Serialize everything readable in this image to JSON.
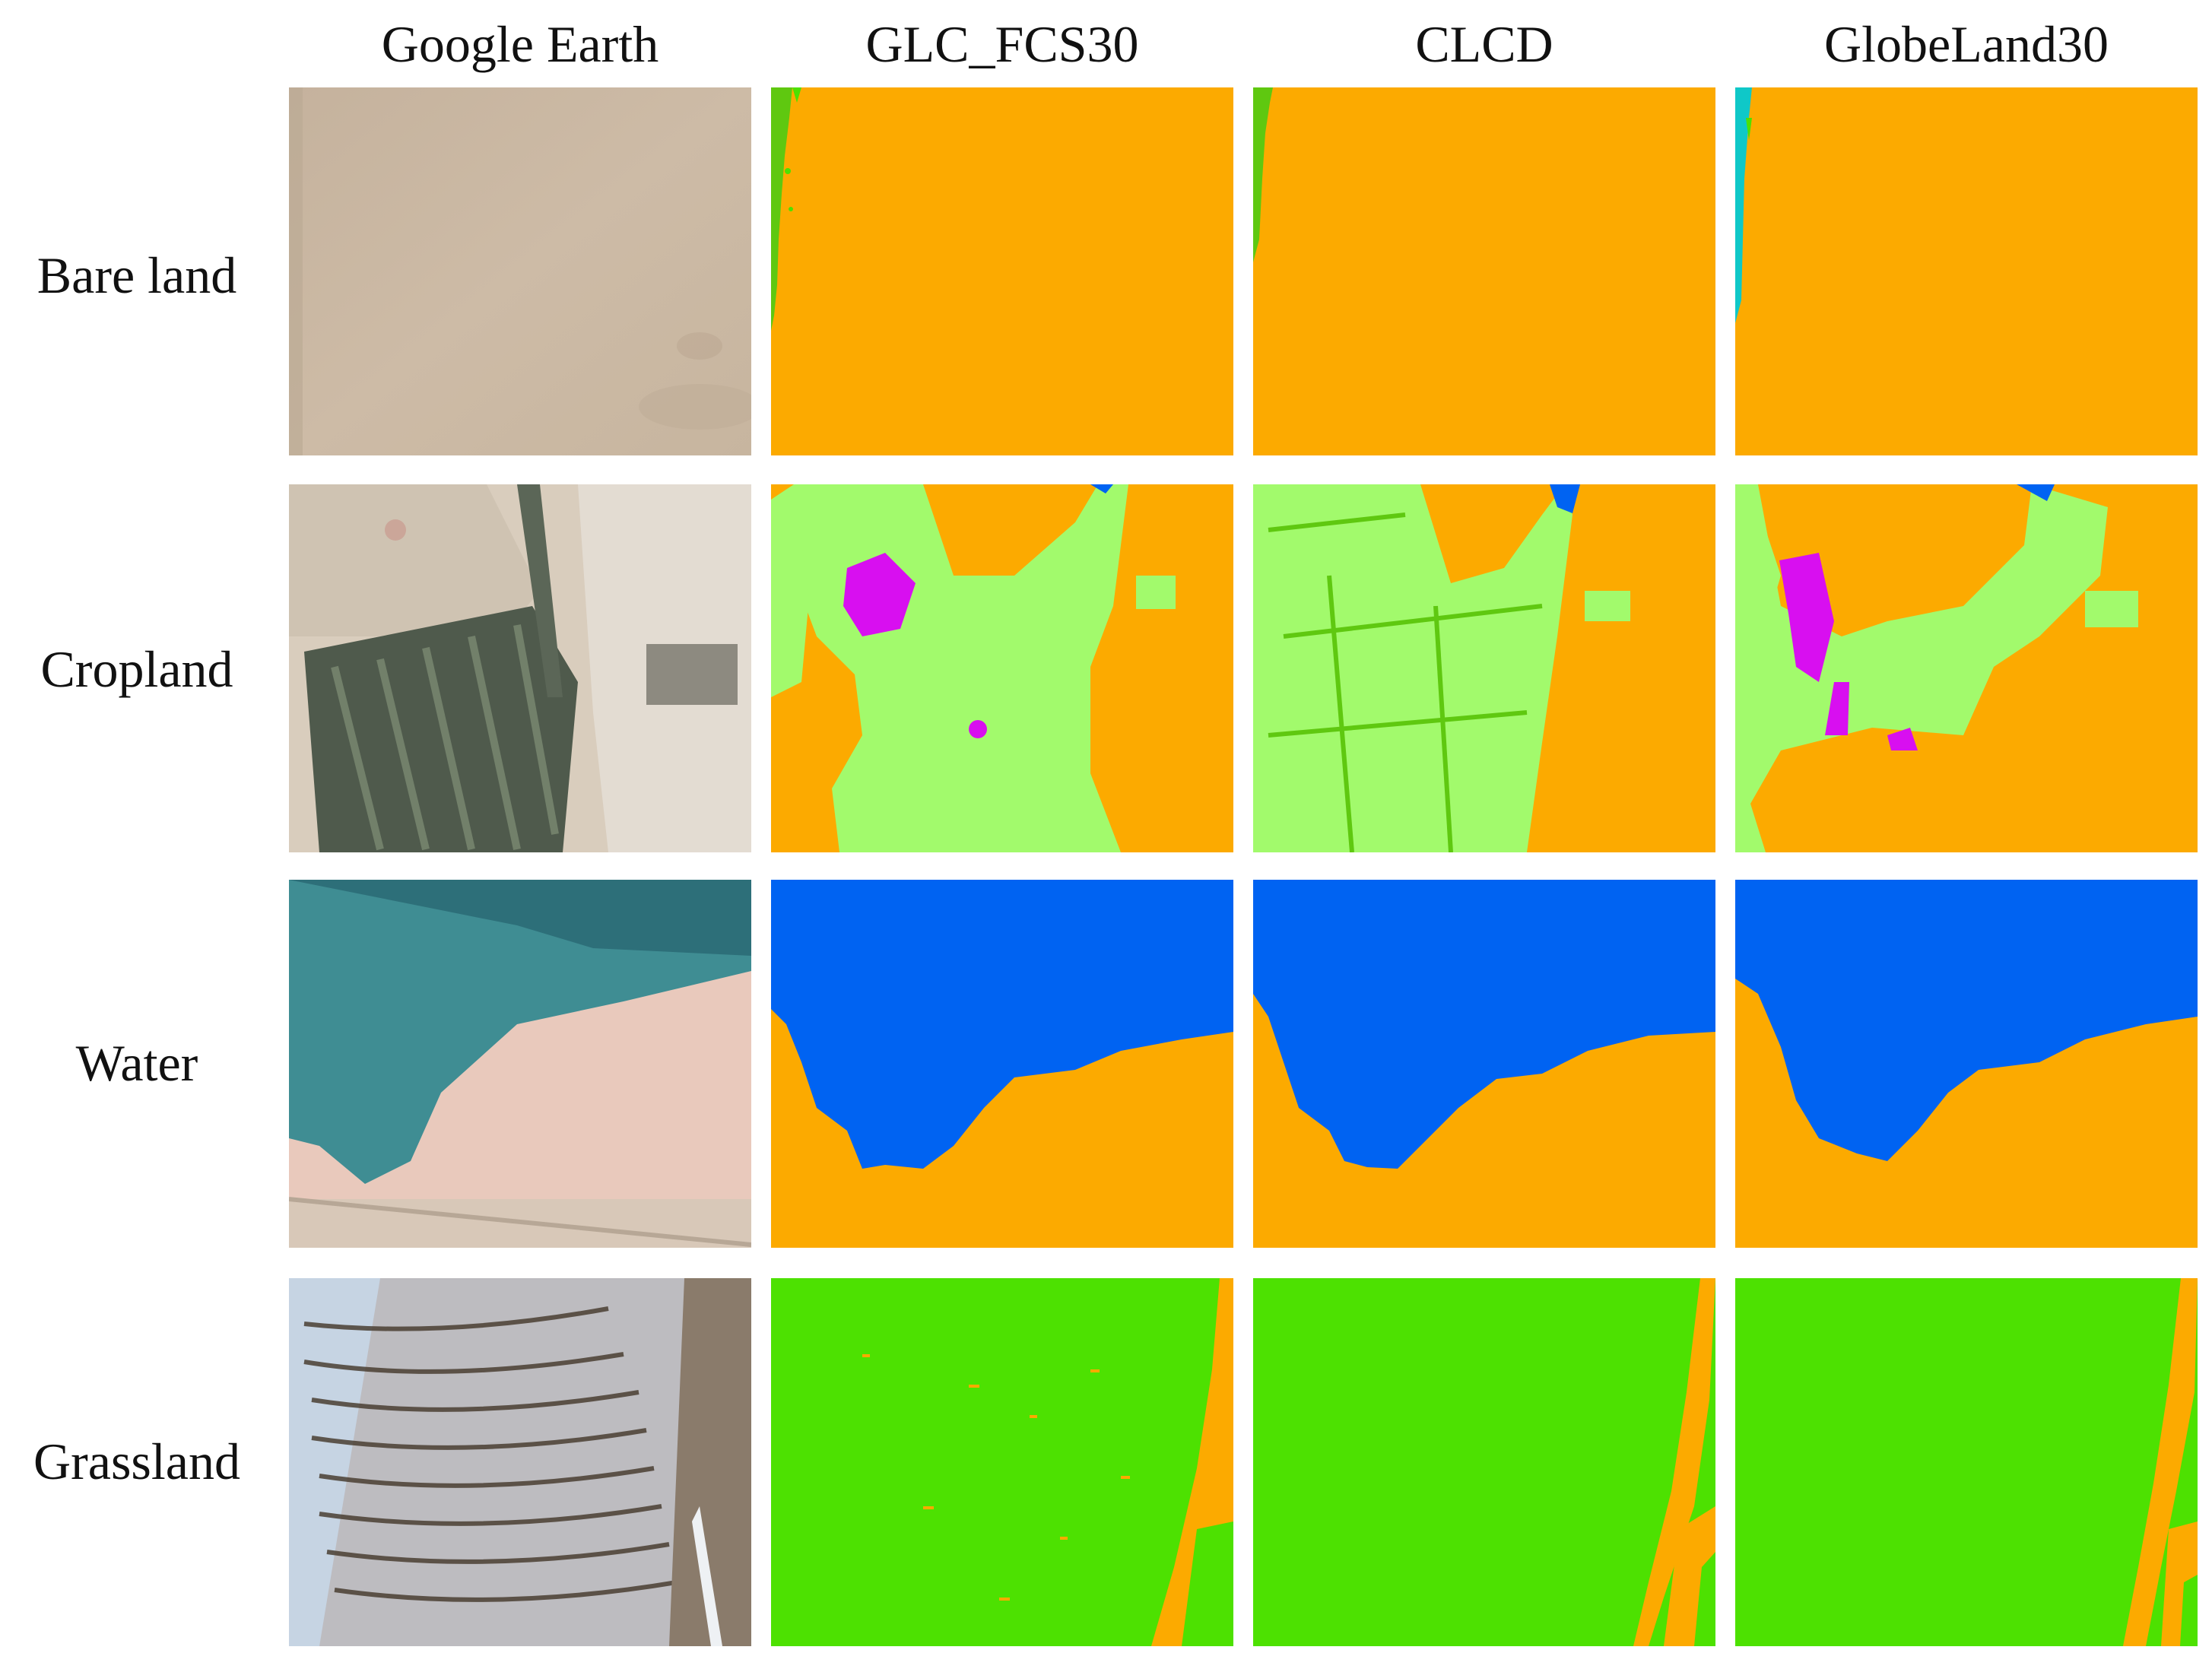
{
  "columns": [
    "Google Earth",
    "GLC_FCS30",
    "CLCD",
    "GlobeLand30"
  ],
  "rows": [
    "Bare land",
    "Cropland",
    "Water",
    "Grassland"
  ],
  "colors": {
    "bare_land": "#fcaa00",
    "water": "#0063f2",
    "cropland": "#a2fa6c",
    "grassland": "#4de101",
    "shrub_grass_dark": "#5fc810",
    "impervious": "#d80ff0",
    "wetland": "#0fc8c8"
  }
}
